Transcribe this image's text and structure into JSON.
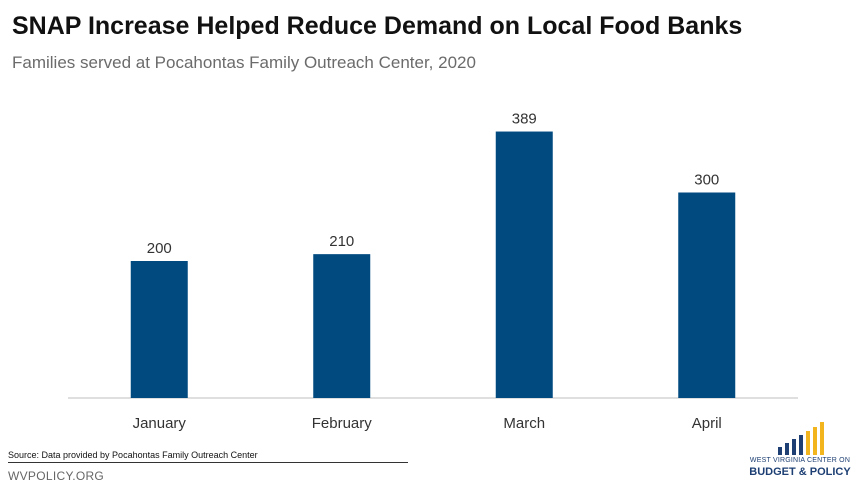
{
  "header": {
    "title": "SNAP Increase Helped Reduce Demand on Local Food Banks",
    "subtitle": "Families served at Pocahontas Family Outreach Center, 2020"
  },
  "chart_data": {
    "type": "bar",
    "title": "SNAP Increase Helped Reduce Demand on Local Food Banks",
    "subtitle": "Families served at Pocahontas Family Outreach Center, 2020",
    "categories": [
      "January",
      "February",
      "March",
      "April"
    ],
    "values": [
      200,
      210,
      389,
      300
    ],
    "data_labels": [
      "200",
      "210",
      "389",
      "300"
    ],
    "xlabel": "",
    "ylabel": "",
    "ylim": [
      0,
      400
    ],
    "grid": false,
    "legend": "none",
    "bar_color": "#004a80",
    "axis_color": "#bfbfbf"
  },
  "footer": {
    "source": "Source: Data provided by Pocahontas Family Outreach Center",
    "site": "WVPOLICY.ORG"
  },
  "logo": {
    "line1": "WEST VIRGINIA CENTER ON",
    "line2": "BUDGET & POLICY",
    "colors": [
      "#1d3f73",
      "#f2b51d"
    ]
  }
}
